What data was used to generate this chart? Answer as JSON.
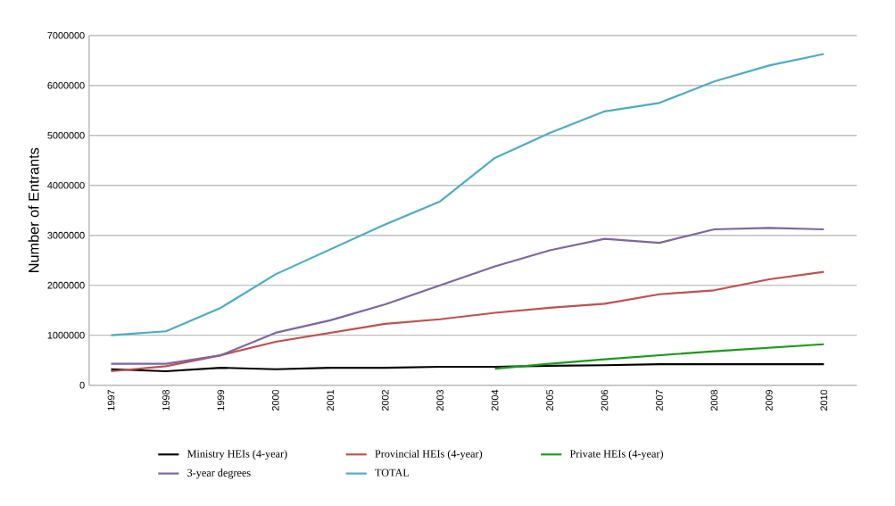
{
  "chart_data": {
    "type": "line",
    "ylabel": "Number of Entrants",
    "categories": [
      "1997",
      "1998",
      "1999",
      "2000",
      "2001",
      "2002",
      "2003",
      "2004",
      "2005",
      "2006",
      "2007",
      "2008",
      "2009",
      "2010"
    ],
    "ylim": [
      0,
      7000000
    ],
    "yticks": [
      0,
      1000000,
      2000000,
      3000000,
      4000000,
      5000000,
      6000000,
      7000000
    ],
    "grid": "y",
    "legend": "bottom",
    "marker": "none",
    "line_style": "solid",
    "series": [
      {
        "name": "Ministry HEIs (4-year)",
        "color": "#000000",
        "values": [
          320000,
          280000,
          350000,
          320000,
          350000,
          350000,
          370000,
          370000,
          390000,
          400000,
          420000,
          420000,
          420000,
          420000
        ]
      },
      {
        "name": "Provincial HEIs (4-year)",
        "color": "#c0504d",
        "values": [
          280000,
          380000,
          600000,
          870000,
          1050000,
          1230000,
          1320000,
          1450000,
          1550000,
          1630000,
          1820000,
          1900000,
          2120000,
          2270000
        ]
      },
      {
        "name": "Private HEIs (4-year)",
        "color": "#1a9a1a",
        "values": [
          null,
          null,
          null,
          null,
          null,
          null,
          null,
          330000,
          430000,
          520000,
          600000,
          680000,
          750000,
          820000
        ]
      },
      {
        "name": "3-year degrees",
        "color": "#8064a2",
        "values": [
          430000,
          430000,
          600000,
          1050000,
          1300000,
          1620000,
          2000000,
          2380000,
          2700000,
          2930000,
          2850000,
          3120000,
          3150000,
          3120000
        ]
      },
      {
        "name": "TOTAL",
        "color": "#4bacc6",
        "values": [
          1000000,
          1080000,
          1550000,
          2220000,
          2720000,
          3220000,
          3680000,
          4550000,
          5050000,
          5480000,
          5650000,
          6080000,
          6400000,
          6630000
        ]
      }
    ]
  }
}
